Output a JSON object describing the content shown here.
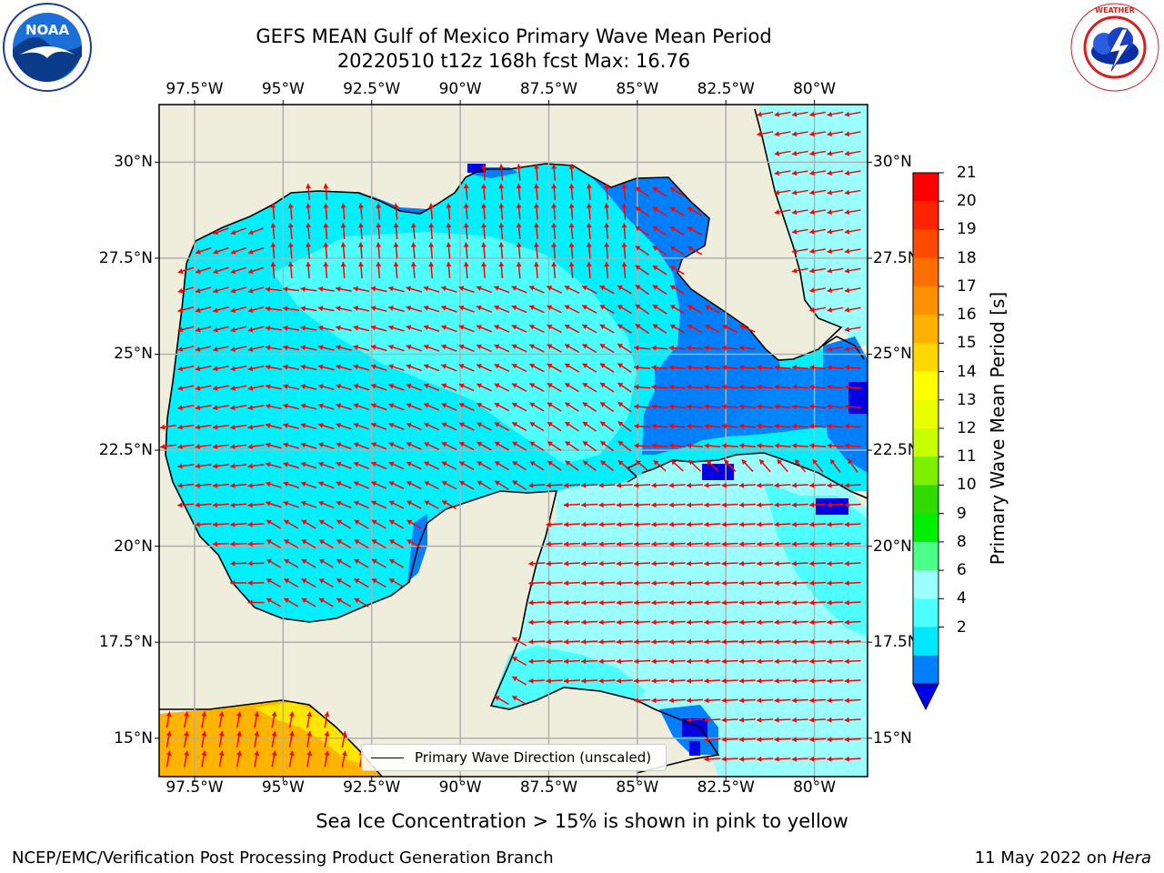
{
  "title": {
    "line1": "GEFS MEAN Gulf of Mexico Primary Wave Mean Period",
    "line2": "20220510 t12z 168h fcst   Max: 16.76"
  },
  "axes": {
    "lon_ticks": [
      "97.5°W",
      "95°W",
      "92.5°W",
      "90°W",
      "87.5°W",
      "85°W",
      "82.5°W",
      "80°W"
    ],
    "lat_ticks_left": [
      "30°N",
      "27.5°N",
      "25°N",
      "22.5°N",
      "20°N",
      "17.5°N",
      "15°N"
    ],
    "lat_ticks_right": [
      "30°N",
      "27.5N",
      "25°N",
      "22.5N",
      "20°N",
      "17.5N",
      "15°N"
    ]
  },
  "colorbar": {
    "label": "Primary Wave Mean Period [s]",
    "ticks": [
      "21",
      "20",
      "19",
      "18",
      "17",
      "16",
      "15",
      "14",
      "13",
      "12",
      "11",
      "10",
      "9",
      "8",
      "6",
      "4",
      "2"
    ],
    "colors": [
      "#ff0000",
      "#ff2400",
      "#ff4a00",
      "#ff6e00",
      "#ff9000",
      "#ffb000",
      "#ffd700",
      "#ffff00",
      "#e9ff00",
      "#c8ff00",
      "#7cf000",
      "#2fdb00",
      "#00ee00",
      "#4cff88",
      "#9cffff",
      "#4dffff",
      "#00e8ff",
      "#0080ff"
    ],
    "extend_color": "#0000e8"
  },
  "legend": {
    "label": "Primary Wave Direction (unscaled)"
  },
  "annotation": "Sea Ice Concentration > 15% is shown in pink to yellow",
  "footer": {
    "left": "NCEP/EMC/Verification Post Processing Product Generation Branch",
    "date": "11 May 2022 on ",
    "machine": "Hera"
  },
  "logos": {
    "left_text": "NOAA",
    "right_text": "NATIONAL WEATHER SERVICE",
    "left_ring_text": "NATIONAL OCEANIC AND ATMOSPHERIC ADMINISTRATION · U.S. DEPARTMENT OF COMMERCE"
  },
  "map": {
    "lon_range": [
      -98.5,
      -78.5
    ],
    "lat_range": [
      14,
      31.5
    ],
    "land_color": "#efeddc",
    "ocean_colors": {
      "period_2_4": "#0080ff",
      "period_4_6": "#00f0ff",
      "period_6_8": "#4dffff",
      "period_8_9": "#9cffff",
      "period_15_16": "#ffe600",
      "period_16_17": "#ffb400",
      "below_2": "#0000e0"
    },
    "arrow_color": "#ff0000",
    "grid": true
  }
}
